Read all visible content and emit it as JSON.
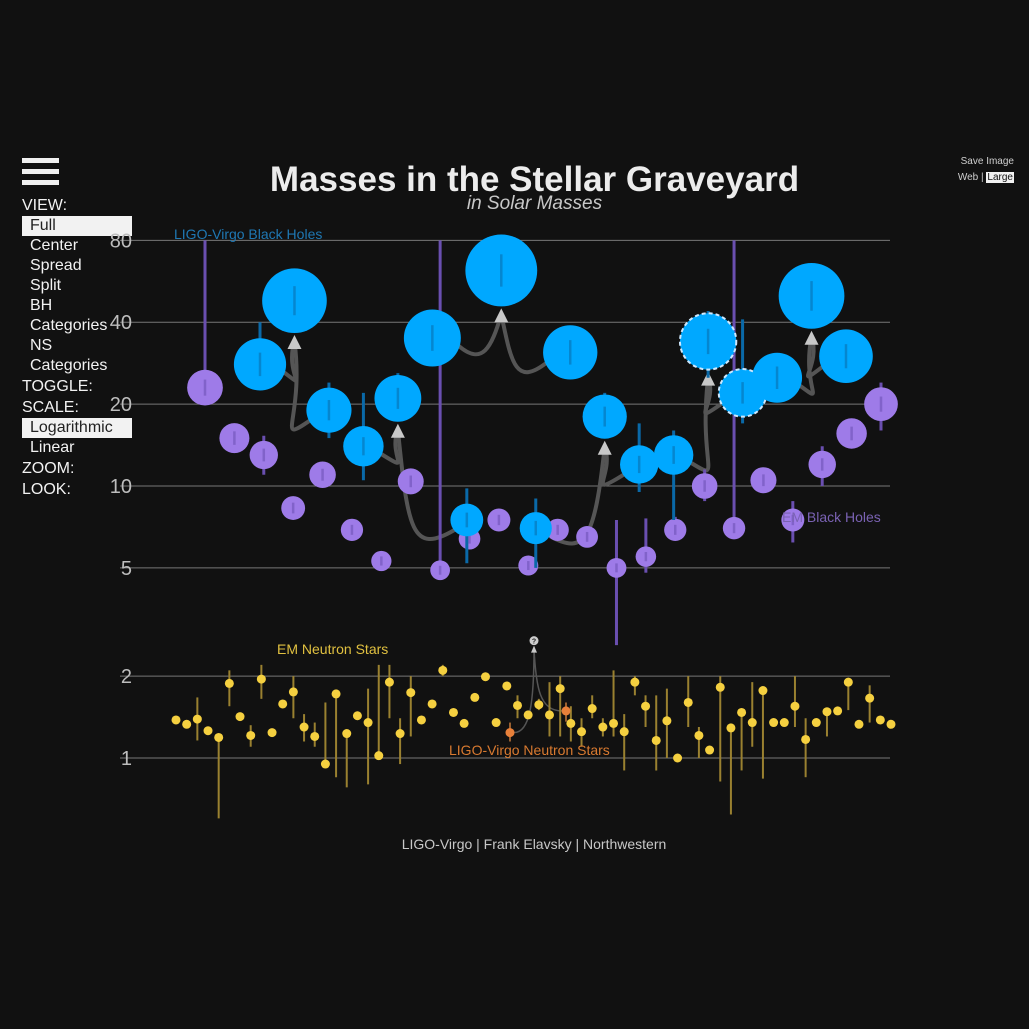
{
  "title": "Masses in the Stellar Graveyard",
  "subtitle": "in Solar Masses",
  "menu": {
    "view_label": "VIEW:",
    "view_options": [
      "Full",
      "Center",
      "Spread",
      "Split",
      "BH Categories",
      "NS Categories"
    ],
    "toggle_label": "TOGGLE:",
    "scale_label": "SCALE:",
    "scale_options": [
      "Logarithmic",
      "Linear"
    ],
    "zoom_label": "ZOOM:",
    "look_label": "LOOK:"
  },
  "save": {
    "label": "Save Image",
    "web": "Web",
    "separator": "|",
    "large": "Large"
  },
  "credit": "LIGO-Virgo | Frank Elavsky | Northwestern",
  "icons": {
    "menu": "hamburger-menu-icon",
    "unknown": "question-mark-icon"
  },
  "colors": {
    "background": "#111111",
    "ligo_bh": "#00a8ff",
    "em_bh": "#9e7be8",
    "em_ns": "#f5d040",
    "ligo_ns": "#e8803a",
    "gridline": "#777777",
    "arrow": "#555555"
  },
  "chart_data": {
    "type": "scatter",
    "scale": "log",
    "ylim": [
      0.7,
      80
    ],
    "yticks": [
      1,
      2,
      5,
      10,
      20,
      40,
      80
    ],
    "ytick_labels": [
      "1",
      "2",
      "5",
      "10",
      "20",
      "40",
      "80"
    ],
    "grid": true,
    "annotations": [
      {
        "text": "LIGO-Virgo Black Holes",
        "color": "#1f78b4"
      },
      {
        "text": "EM Black Holes",
        "color": "#7a62b3"
      },
      {
        "text": "EM Neutron Stars",
        "color": "#e0c040"
      },
      {
        "text": "LIGO-Virgo Neutron Stars",
        "color": "#d97a30"
      }
    ],
    "em_black_holes": [
      {
        "x": 1,
        "m": 23,
        "lo": 20.5,
        "hi": 80
      },
      {
        "x": 2,
        "m": 15,
        "lo": 14.6,
        "hi": 15.4
      },
      {
        "x": 3,
        "m": 13,
        "lo": 11,
        "hi": 15.3
      },
      {
        "x": 4,
        "m": 8.3,
        "lo": 8.1,
        "hi": 8.5
      },
      {
        "x": 5,
        "m": 11,
        "lo": 10.5,
        "hi": 11.5
      },
      {
        "x": 6,
        "m": 6.9,
        "lo": 6.6,
        "hi": 7.2
      },
      {
        "x": 7,
        "m": 5.3,
        "lo": 5.1,
        "hi": 5.5
      },
      {
        "x": 8,
        "m": 10.4,
        "lo": 10,
        "hi": 10.8
      },
      {
        "x": 9,
        "m": 4.9,
        "lo": 4.7,
        "hi": 80
      },
      {
        "x": 10,
        "m": 6.4,
        "lo": 6.1,
        "hi": 6.7
      },
      {
        "x": 11,
        "m": 7.5,
        "lo": 7.2,
        "hi": 7.8
      },
      {
        "x": 12,
        "m": 5.1,
        "lo": 4.9,
        "hi": 5.3
      },
      {
        "x": 13,
        "m": 6.9,
        "lo": 6.6,
        "hi": 7.2
      },
      {
        "x": 14,
        "m": 6.5,
        "lo": 6.3,
        "hi": 6.7
      },
      {
        "x": 15,
        "m": 5,
        "lo": 2.6,
        "hi": 7.5
      },
      {
        "x": 16,
        "m": 5.5,
        "lo": 4.8,
        "hi": 7.6
      },
      {
        "x": 17,
        "m": 6.9,
        "lo": 6.5,
        "hi": 7.7
      },
      {
        "x": 18,
        "m": 10,
        "lo": 8.8,
        "hi": 11.5
      },
      {
        "x": 19,
        "m": 7,
        "lo": 6.8,
        "hi": 80
      },
      {
        "x": 20,
        "m": 10.5,
        "lo": 10.2,
        "hi": 10.8
      },
      {
        "x": 21,
        "m": 7.5,
        "lo": 6.2,
        "hi": 8.8
      },
      {
        "x": 22,
        "m": 12,
        "lo": 10,
        "hi": 14
      },
      {
        "x": 23,
        "m": 15.6,
        "lo": 15,
        "hi": 16.2
      },
      {
        "x": 24,
        "m": 20,
        "lo": 16,
        "hi": 24
      }
    ],
    "ligo_black_holes": [
      {
        "x": 1,
        "m": 28,
        "lo": 24,
        "hi": 40
      },
      {
        "x": 2,
        "m": 48,
        "lo": 44,
        "hi": 53
      },
      {
        "x": 3,
        "m": 19,
        "lo": 15,
        "hi": 24
      },
      {
        "x": 4,
        "m": 14,
        "lo": 10.5,
        "hi": 22
      },
      {
        "x": 5,
        "m": 21,
        "lo": 18,
        "hi": 26
      },
      {
        "x": 6,
        "m": 35,
        "lo": 32,
        "hi": 38
      },
      {
        "x": 7,
        "m": 7.5,
        "lo": 5.2,
        "hi": 9.8
      },
      {
        "x": 8,
        "m": 62,
        "lo": 58,
        "hi": 66
      },
      {
        "x": 9,
        "m": 7,
        "lo": 5,
        "hi": 9
      },
      {
        "x": 10,
        "m": 31,
        "lo": 28,
        "hi": 34
      },
      {
        "x": 11,
        "m": 18,
        "lo": 15,
        "hi": 22
      },
      {
        "x": 12,
        "m": 12,
        "lo": 9.5,
        "hi": 17
      },
      {
        "x": 13,
        "m": 13,
        "lo": 7.5,
        "hi": 16
      },
      {
        "x": 14,
        "m": 34,
        "lo": 25,
        "hi": 44,
        "dashed": true
      },
      {
        "x": 15,
        "m": 22,
        "lo": 17,
        "hi": 41,
        "dashed": true
      },
      {
        "x": 16,
        "m": 25,
        "lo": 21,
        "hi": 29
      },
      {
        "x": 17,
        "m": 50,
        "lo": 46,
        "hi": 54
      },
      {
        "x": 18,
        "m": 30,
        "lo": 27,
        "hi": 34
      }
    ],
    "em_neutron_stars": [
      {
        "x": 1,
        "m": 1.38,
        "lo": 1.38,
        "hi": 1.38
      },
      {
        "x": 2,
        "m": 1.33,
        "lo": 1.33,
        "hi": 1.33
      },
      {
        "x": 3,
        "m": 1.39,
        "lo": 1.16,
        "hi": 1.67
      },
      {
        "x": 4,
        "m": 1.26,
        "lo": 1.26,
        "hi": 1.26
      },
      {
        "x": 5,
        "m": 1.19,
        "lo": 0.6,
        "hi": 1.19
      },
      {
        "x": 6,
        "m": 1.88,
        "lo": 1.55,
        "hi": 2.1
      },
      {
        "x": 7,
        "m": 1.42,
        "lo": 1.42,
        "hi": 1.42
      },
      {
        "x": 8,
        "m": 1.21,
        "lo": 1.1,
        "hi": 1.32
      },
      {
        "x": 9,
        "m": 1.95,
        "lo": 1.65,
        "hi": 2.2
      },
      {
        "x": 10,
        "m": 1.24,
        "lo": 1.24,
        "hi": 1.24
      },
      {
        "x": 11,
        "m": 1.58,
        "lo": 1.58,
        "hi": 1.58
      },
      {
        "x": 12,
        "m": 1.75,
        "lo": 1.4,
        "hi": 2.0
      },
      {
        "x": 13,
        "m": 1.3,
        "lo": 1.15,
        "hi": 1.45
      },
      {
        "x": 14,
        "m": 1.2,
        "lo": 1.1,
        "hi": 1.35
      },
      {
        "x": 15,
        "m": 0.95,
        "lo": 0.95,
        "hi": 1.6
      },
      {
        "x": 16,
        "m": 1.72,
        "lo": 0.85,
        "hi": 1.72
      },
      {
        "x": 17,
        "m": 1.23,
        "lo": 0.78,
        "hi": 1.23
      },
      {
        "x": 18,
        "m": 1.43,
        "lo": 1.43,
        "hi": 1.43
      },
      {
        "x": 19,
        "m": 1.35,
        "lo": 0.8,
        "hi": 1.8
      },
      {
        "x": 20,
        "m": 1.02,
        "lo": 1.02,
        "hi": 2.2
      },
      {
        "x": 21,
        "m": 1.9,
        "lo": 1.4,
        "hi": 2.2
      },
      {
        "x": 22,
        "m": 1.23,
        "lo": 0.95,
        "hi": 1.4
      },
      {
        "x": 23,
        "m": 1.74,
        "lo": 1.2,
        "hi": 2.0
      },
      {
        "x": 24,
        "m": 1.38,
        "lo": 1.38,
        "hi": 1.38
      },
      {
        "x": 25,
        "m": 1.58,
        "lo": 1.58,
        "hi": 1.58
      },
      {
        "x": 26,
        "m": 2.1,
        "lo": 2.0,
        "hi": 2.2
      },
      {
        "x": 27,
        "m": 1.47,
        "lo": 1.47,
        "hi": 1.47
      },
      {
        "x": 28,
        "m": 1.34,
        "lo": 1.34,
        "hi": 1.34
      },
      {
        "x": 29,
        "m": 1.67,
        "lo": 1.67,
        "hi": 1.67
      },
      {
        "x": 30,
        "m": 1.99,
        "lo": 1.99,
        "hi": 1.99
      },
      {
        "x": 31,
        "m": 1.35,
        "lo": 1.35,
        "hi": 1.35
      },
      {
        "x": 32,
        "m": 1.84,
        "lo": 1.8,
        "hi": 1.9
      },
      {
        "x": 33,
        "m": 1.56,
        "lo": 1.4,
        "hi": 1.7
      },
      {
        "x": 34,
        "m": 1.44,
        "lo": 1.44,
        "hi": 1.44
      },
      {
        "x": 35,
        "m": 1.57,
        "lo": 1.5,
        "hi": 1.65
      },
      {
        "x": 36,
        "m": 1.44,
        "lo": 1.2,
        "hi": 1.9
      },
      {
        "x": 37,
        "m": 1.8,
        "lo": 1.2,
        "hi": 2.0
      },
      {
        "x": 38,
        "m": 1.34,
        "lo": 1.15,
        "hi": 1.55
      },
      {
        "x": 39,
        "m": 1.25,
        "lo": 1.1,
        "hi": 1.4
      },
      {
        "x": 40,
        "m": 1.52,
        "lo": 1.4,
        "hi": 1.7
      },
      {
        "x": 41,
        "m": 1.3,
        "lo": 1.2,
        "hi": 1.4
      },
      {
        "x": 42,
        "m": 1.34,
        "lo": 1.2,
        "hi": 2.1
      },
      {
        "x": 43,
        "m": 1.25,
        "lo": 0.9,
        "hi": 1.45
      },
      {
        "x": 44,
        "m": 1.9,
        "lo": 1.7,
        "hi": 2.0
      },
      {
        "x": 45,
        "m": 1.55,
        "lo": 1.3,
        "hi": 1.7
      },
      {
        "x": 46,
        "m": 1.16,
        "lo": 0.9,
        "hi": 1.7
      },
      {
        "x": 47,
        "m": 1.37,
        "lo": 1.0,
        "hi": 1.8
      },
      {
        "x": 48,
        "m": 1.0,
        "lo": 1.0,
        "hi": 1.0
      },
      {
        "x": 49,
        "m": 1.6,
        "lo": 1.3,
        "hi": 2.0
      },
      {
        "x": 50,
        "m": 1.21,
        "lo": 1.0,
        "hi": 1.3
      },
      {
        "x": 51,
        "m": 1.07,
        "lo": 1.07,
        "hi": 1.07
      },
      {
        "x": 52,
        "m": 1.82,
        "lo": 0.82,
        "hi": 2.0
      },
      {
        "x": 53,
        "m": 1.29,
        "lo": 0.62,
        "hi": 1.29
      },
      {
        "x": 54,
        "m": 1.47,
        "lo": 0.9,
        "hi": 1.47
      },
      {
        "x": 55,
        "m": 1.35,
        "lo": 1.1,
        "hi": 1.9
      },
      {
        "x": 56,
        "m": 1.77,
        "lo": 0.84,
        "hi": 1.77
      },
      {
        "x": 57,
        "m": 1.35,
        "lo": 1.35,
        "hi": 1.35
      },
      {
        "x": 58,
        "m": 1.35,
        "lo": 1.35,
        "hi": 1.35
      },
      {
        "x": 59,
        "m": 1.55,
        "lo": 1.3,
        "hi": 2.0
      },
      {
        "x": 60,
        "m": 1.17,
        "lo": 0.85,
        "hi": 1.4
      },
      {
        "x": 61,
        "m": 1.35,
        "lo": 1.35,
        "hi": 1.35
      },
      {
        "x": 62,
        "m": 1.48,
        "lo": 1.2,
        "hi": 1.48
      },
      {
        "x": 63,
        "m": 1.49,
        "lo": 1.49,
        "hi": 1.49
      },
      {
        "x": 64,
        "m": 1.9,
        "lo": 1.5,
        "hi": 1.9
      },
      {
        "x": 65,
        "m": 1.33,
        "lo": 1.33,
        "hi": 1.33
      },
      {
        "x": 66,
        "m": 1.66,
        "lo": 1.35,
        "hi": 1.85
      },
      {
        "x": 67,
        "m": 1.38,
        "lo": 1.38,
        "hi": 1.38
      },
      {
        "x": 68,
        "m": 1.33,
        "lo": 1.33,
        "hi": 1.33
      }
    ],
    "ligo_neutron_stars": [
      {
        "x": 1,
        "m": 1.24,
        "lo": 1.15,
        "hi": 1.35
      },
      {
        "x": 2,
        "m": 1.49,
        "lo": 1.36,
        "hi": 1.6
      }
    ],
    "unknown_remnant": {
      "m": 2.7,
      "label": "?"
    }
  }
}
